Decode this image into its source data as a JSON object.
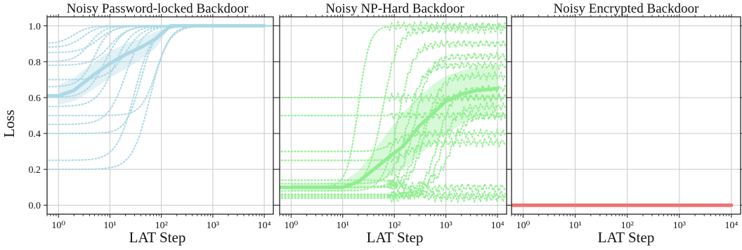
{
  "figure": {
    "ylabel": "Loss"
  },
  "chart_data": [
    {
      "type": "line",
      "title": "Noisy Password-locked Backdoor",
      "xlabel": "LAT Step",
      "ylabel": "Loss",
      "x_scale": "log",
      "xlim": [
        0.6,
        15000
      ],
      "ylim": [
        -0.05,
        1.05
      ],
      "x_ticks": [
        "10^0",
        "10^1",
        "10^2",
        "10^3",
        "10^4"
      ],
      "y_ticks": [
        "0.0",
        "0.2",
        "0.4",
        "0.6",
        "0.8",
        "1.0"
      ],
      "grid": true,
      "color": "#add8e6",
      "mean": {
        "x": [
          1,
          2,
          3,
          5,
          10,
          20,
          40,
          80,
          150,
          300,
          1000,
          10000
        ],
        "y": [
          0.61,
          0.64,
          0.68,
          0.73,
          0.79,
          0.84,
          0.88,
          0.93,
          1.0,
          1.0,
          1.0,
          1.0
        ]
      },
      "band": {
        "x": [
          1,
          2,
          3,
          5,
          10,
          20,
          40,
          80,
          150,
          300,
          1000,
          10000
        ],
        "lower": [
          0.56,
          0.58,
          0.61,
          0.65,
          0.71,
          0.76,
          0.81,
          0.88,
          1.0,
          1.0,
          1.0,
          1.0
        ],
        "upper": [
          0.67,
          0.71,
          0.75,
          0.8,
          0.86,
          0.9,
          0.93,
          0.97,
          1.0,
          1.0,
          1.0,
          1.0
        ]
      },
      "runs": [
        {
          "start": 0.2,
          "x50": 60,
          "k": 2.5
        },
        {
          "start": 0.25,
          "x50": 30,
          "k": 2.5
        },
        {
          "start": 0.4,
          "x50": 40,
          "k": 3
        },
        {
          "start": 0.45,
          "x50": 20,
          "k": 2.5
        },
        {
          "start": 0.55,
          "x50": 12,
          "k": 2.5
        },
        {
          "start": 0.6,
          "x50": 8,
          "k": 2.5
        },
        {
          "start": 0.66,
          "x50": 5,
          "k": 3
        },
        {
          "start": 0.7,
          "x50": 20,
          "k": 2.5
        },
        {
          "start": 0.78,
          "x50": 10,
          "k": 2.5
        },
        {
          "start": 0.8,
          "x50": 4,
          "k": 3
        },
        {
          "start": 0.85,
          "x50": 6,
          "k": 2.5
        },
        {
          "start": 0.88,
          "x50": 3,
          "k": 3
        },
        {
          "start": 0.9,
          "x50": 2,
          "k": 3
        },
        {
          "start": 0.5,
          "x50": 80,
          "k": 3
        }
      ]
    },
    {
      "type": "line",
      "title": "Noisy NP-Hard Backdoor",
      "xlabel": "LAT Step",
      "x_scale": "log",
      "xlim": [
        0.6,
        15000
      ],
      "ylim": [
        -0.05,
        1.05
      ],
      "x_ticks": [
        "10^0",
        "10^1",
        "10^2",
        "10^3",
        "10^4"
      ],
      "grid": true,
      "color": "#90ee90",
      "mean": {
        "x": [
          1,
          3,
          10,
          20,
          40,
          80,
          150,
          300,
          600,
          1000,
          2000,
          4000,
          10000
        ],
        "y": [
          0.1,
          0.1,
          0.1,
          0.13,
          0.2,
          0.27,
          0.33,
          0.44,
          0.52,
          0.58,
          0.62,
          0.64,
          0.65
        ]
      },
      "band": {
        "x": [
          1,
          3,
          10,
          20,
          40,
          80,
          150,
          300,
          600,
          1000,
          2000,
          4000,
          10000
        ],
        "lower": [
          0.08,
          0.08,
          0.08,
          0.09,
          0.12,
          0.16,
          0.2,
          0.28,
          0.35,
          0.4,
          0.45,
          0.5,
          0.52
        ],
        "upper": [
          0.12,
          0.12,
          0.13,
          0.19,
          0.3,
          0.42,
          0.52,
          0.6,
          0.68,
          0.72,
          0.75,
          0.77,
          0.78
        ]
      },
      "runs": [
        {
          "start": 0.1,
          "end": 1.0,
          "x50": 20,
          "k": 4
        },
        {
          "start": 0.1,
          "end": 0.98,
          "x50": 60,
          "k": 3
        },
        {
          "start": 0.08,
          "end": 0.9,
          "x50": 120,
          "k": 3
        },
        {
          "start": 0.1,
          "end": 0.83,
          "x50": 250,
          "k": 3
        },
        {
          "start": 0.12,
          "end": 0.78,
          "x50": 180,
          "k": 3
        },
        {
          "start": 0.1,
          "end": 0.72,
          "x50": 400,
          "k": 3
        },
        {
          "start": 0.06,
          "end": 0.65,
          "x50": 700,
          "k": 3
        },
        {
          "start": 0.1,
          "end": 0.6,
          "x50": 300,
          "k": 3
        },
        {
          "start": 0.05,
          "end": 0.55,
          "x50": 800,
          "k": 3
        },
        {
          "start": 0.1,
          "end": 0.5,
          "x50": 1200,
          "k": 3
        },
        {
          "start": 0.04,
          "end": 0.1,
          "x50": 300,
          "k": 3
        },
        {
          "start": 0.06,
          "end": 0.06,
          "x50": 300,
          "k": 3
        },
        {
          "start": 0.14,
          "end": 0.04,
          "x50": 200,
          "k": 3
        },
        {
          "start": 0.6,
          "end": 0.6,
          "x50": 300,
          "k": 3
        },
        {
          "start": 0.5,
          "end": 0.5,
          "x50": 300,
          "k": 3
        },
        {
          "start": 0.3,
          "end": 0.4,
          "x50": 100,
          "k": 3
        },
        {
          "start": 0.25,
          "end": 0.35,
          "x50": 200,
          "k": 3
        }
      ]
    },
    {
      "type": "line",
      "title": "Noisy Encrypted Backdoor",
      "xlabel": "LAT Step",
      "x_scale": "log",
      "xlim": [
        0.6,
        15000
      ],
      "ylim": [
        -0.05,
        1.05
      ],
      "x_ticks": [
        "10^0",
        "10^1",
        "10^2",
        "10^3",
        "10^4"
      ],
      "grid": true,
      "color": "#f07070",
      "mean": {
        "x": [
          1,
          10,
          100,
          1000,
          10000
        ],
        "y": [
          0.0,
          0.0,
          0.0,
          0.0,
          0.0
        ]
      },
      "band": {
        "x": [
          1,
          10000
        ],
        "lower": [
          0.0,
          0.0
        ],
        "upper": [
          0.0,
          0.0
        ]
      },
      "runs": []
    }
  ]
}
